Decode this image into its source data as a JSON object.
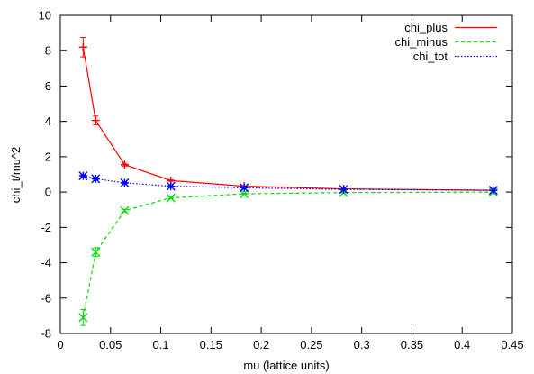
{
  "chart_data": {
    "type": "line",
    "xlabel": "mu (lattice units)",
    "ylabel": "chi_t/mu^2",
    "xlim": [
      0,
      0.45
    ],
    "ylim": [
      -8,
      10
    ],
    "xticks": [
      "0",
      "0.05",
      "0.1",
      "0.15",
      "0.2",
      "0.25",
      "0.3",
      "0.35",
      "0.4",
      "0.45"
    ],
    "xtick_values": [
      0,
      0.05,
      0.1,
      0.15,
      0.2,
      0.25,
      0.3,
      0.35,
      0.4,
      0.45
    ],
    "yticks": [
      "-8",
      "-6",
      "-4",
      "-2",
      "0",
      "2",
      "4",
      "6",
      "8",
      "10"
    ],
    "ytick_values": [
      -8,
      -6,
      -4,
      -2,
      0,
      2,
      4,
      6,
      8,
      10
    ],
    "grid": false,
    "legend_position": "top-right",
    "series": [
      {
        "name": "chi_plus",
        "color": "#ff0000",
        "dash": "solid",
        "marker": "plus",
        "x": [
          0.0227,
          0.0352,
          0.064,
          0.11,
          0.183,
          0.282,
          0.431
        ],
        "y": [
          8.2,
          4.05,
          1.55,
          0.65,
          0.33,
          0.18,
          0.1
        ],
        "err": [
          0.55,
          0.25,
          0.08,
          0.04,
          0.02,
          0.01,
          0.01
        ]
      },
      {
        "name": "chi_minus",
        "color": "#00dd00",
        "dash": "dashed",
        "marker": "cross",
        "x": [
          0.0227,
          0.0352,
          0.064,
          0.11,
          0.183,
          0.282,
          0.431
        ],
        "y": [
          -7.1,
          -3.4,
          -1.05,
          -0.33,
          -0.1,
          -0.03,
          0.0
        ],
        "err": [
          0.45,
          0.25,
          0.08,
          0.04,
          0.02,
          0.01,
          0.01
        ]
      },
      {
        "name": "chi_tot",
        "color": "#0000ff",
        "dash": "dotted",
        "marker": "star",
        "x": [
          0.0227,
          0.0352,
          0.064,
          0.11,
          0.183,
          0.282,
          0.431
        ],
        "y": [
          0.92,
          0.75,
          0.52,
          0.33,
          0.24,
          0.15,
          0.1
        ],
        "err": [
          0.06,
          0.05,
          0.04,
          0.03,
          0.02,
          0.01,
          0.01
        ]
      }
    ]
  }
}
